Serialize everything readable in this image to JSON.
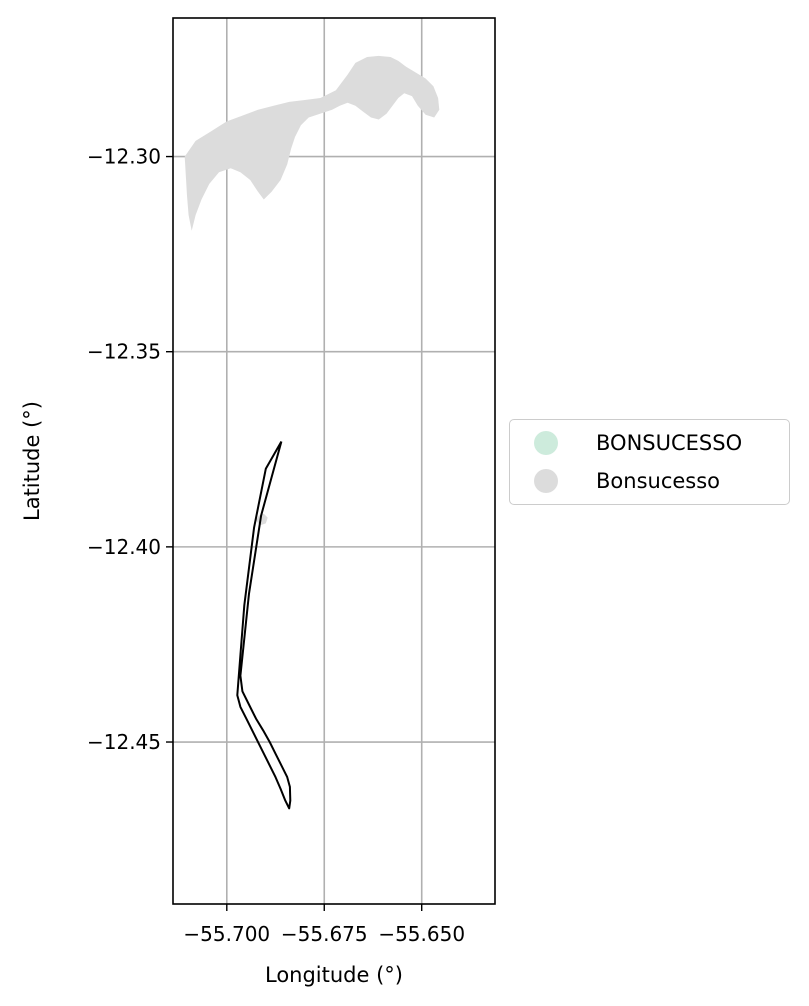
{
  "chart_data": {
    "type": "map",
    "xlabel": "Longitude (°)",
    "ylabel": "Latitude (°)",
    "xlim": [
      -55.7138,
      -55.6312
    ],
    "ylim": [
      -12.4915,
      -12.2645
    ],
    "xticks": [
      -55.7,
      -55.675,
      -55.65
    ],
    "xtick_labels": [
      "−55.700",
      "−55.675",
      "−55.650"
    ],
    "yticks": [
      -12.3,
      -12.35,
      -12.4,
      -12.45
    ],
    "ytick_labels": [
      "−12.30",
      "−12.35",
      "−12.40",
      "−12.45"
    ],
    "grid": true,
    "legend": {
      "placement": "center-left outside",
      "entries": [
        {
          "label": "BONSUCESSO",
          "color": "#cdebdc"
        },
        {
          "label": "Bonsucesso",
          "color": "#dcdcdc"
        }
      ]
    },
    "boundary_outline": {
      "color": "#000000",
      "points": [
        [
          -55.686,
          -12.373
        ],
        [
          -55.6912,
          -12.392
        ],
        [
          -55.6943,
          -12.412
        ],
        [
          -55.6965,
          -12.433
        ],
        [
          -55.696,
          -12.437
        ],
        [
          -55.6945,
          -12.44
        ],
        [
          -55.6925,
          -12.444
        ],
        [
          -55.6907,
          -12.447
        ],
        [
          -55.689,
          -12.45
        ],
        [
          -55.6875,
          -12.453
        ],
        [
          -55.686,
          -12.456
        ],
        [
          -55.6845,
          -12.459
        ],
        [
          -55.6838,
          -12.4615
        ],
        [
          -55.6837,
          -12.465
        ],
        [
          -55.684,
          -12.467
        ],
        [
          -55.685,
          -12.465
        ],
        [
          -55.6862,
          -12.462
        ],
        [
          -55.6875,
          -12.459
        ],
        [
          -55.689,
          -12.456
        ],
        [
          -55.691,
          -12.452
        ],
        [
          -55.693,
          -12.448
        ],
        [
          -55.695,
          -12.444
        ],
        [
          -55.6965,
          -12.441
        ],
        [
          -55.6973,
          -12.438
        ],
        [
          -55.697,
          -12.434
        ],
        [
          -55.6955,
          -12.415
        ],
        [
          -55.693,
          -12.395
        ],
        [
          -55.69,
          -12.38
        ],
        [
          -55.686,
          -12.373
        ]
      ]
    },
    "bonsucesso_area": {
      "color": "#dcdcdc",
      "polygons": [
        [
          [
            -55.7108,
            -12.3
          ],
          [
            -55.708,
            -12.296
          ],
          [
            -55.704,
            -12.2935
          ],
          [
            -55.7,
            -12.291
          ],
          [
            -55.696,
            -12.2895
          ],
          [
            -55.692,
            -12.288
          ],
          [
            -55.688,
            -12.287
          ],
          [
            -55.684,
            -12.286
          ],
          [
            -55.68,
            -12.2855
          ],
          [
            -55.676,
            -12.285
          ],
          [
            -55.672,
            -12.283
          ],
          [
            -55.669,
            -12.279
          ],
          [
            -55.667,
            -12.276
          ],
          [
            -55.664,
            -12.2745
          ],
          [
            -55.661,
            -12.2742
          ],
          [
            -55.658,
            -12.2745
          ],
          [
            -55.656,
            -12.2755
          ],
          [
            -55.654,
            -12.277
          ],
          [
            -55.6515,
            -12.2785
          ],
          [
            -55.649,
            -12.28
          ],
          [
            -55.647,
            -12.282
          ],
          [
            -55.6458,
            -12.285
          ],
          [
            -55.6455,
            -12.288
          ],
          [
            -55.6468,
            -12.29
          ],
          [
            -55.649,
            -12.2893
          ],
          [
            -55.651,
            -12.287
          ],
          [
            -55.6525,
            -12.2845
          ],
          [
            -55.6545,
            -12.2838
          ],
          [
            -55.656,
            -12.285
          ],
          [
            -55.6575,
            -12.287
          ],
          [
            -55.659,
            -12.289
          ],
          [
            -55.661,
            -12.2905
          ],
          [
            -55.663,
            -12.29
          ],
          [
            -55.665,
            -12.2885
          ],
          [
            -55.667,
            -12.287
          ],
          [
            -55.669,
            -12.2862
          ],
          [
            -55.671,
            -12.287
          ],
          [
            -55.673,
            -12.288
          ],
          [
            -55.676,
            -12.289
          ],
          [
            -55.679,
            -12.29
          ],
          [
            -55.681,
            -12.292
          ],
          [
            -55.6825,
            -12.295
          ],
          [
            -55.6835,
            -12.298
          ],
          [
            -55.6845,
            -12.302
          ],
          [
            -55.6862,
            -12.306
          ],
          [
            -55.6885,
            -12.309
          ],
          [
            -55.6905,
            -12.311
          ],
          [
            -55.692,
            -12.309
          ],
          [
            -55.694,
            -12.306
          ],
          [
            -55.6965,
            -12.304
          ],
          [
            -55.699,
            -12.303
          ],
          [
            -55.702,
            -12.304
          ],
          [
            -55.7045,
            -12.307
          ],
          [
            -55.7065,
            -12.311
          ],
          [
            -55.708,
            -12.315
          ],
          [
            -55.709,
            -12.319
          ],
          [
            -55.7098,
            -12.315
          ],
          [
            -55.7102,
            -12.31
          ],
          [
            -55.7108,
            -12.3
          ]
        ],
        [
          [
            -55.6918,
            -12.392
          ],
          [
            -55.6905,
            -12.3915
          ],
          [
            -55.6895,
            -12.3925
          ],
          [
            -55.69,
            -12.394
          ],
          [
            -55.6915,
            -12.3945
          ],
          [
            -55.6925,
            -12.3932
          ],
          [
            -55.6918,
            -12.392
          ]
        ]
      ]
    }
  }
}
